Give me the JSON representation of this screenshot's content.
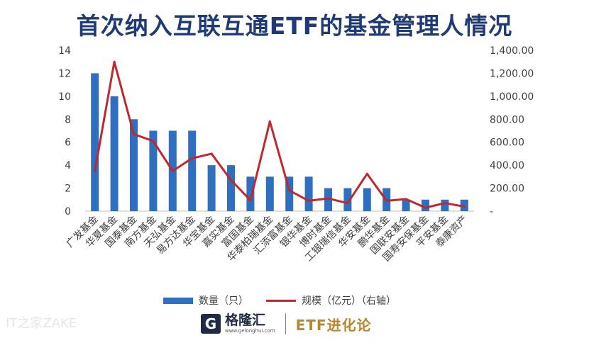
{
  "title": "首次纳入互联互通ETF的基金管理人情况",
  "chart_data": {
    "type": "bar+line",
    "categories": [
      "广发基金",
      "华夏基金",
      "国泰基金",
      "南方基金",
      "天弘基金",
      "易方达基金",
      "华宝基金",
      "嘉实基金",
      "富国基金",
      "华泰柏瑞基金",
      "汇添富基金",
      "银华基金",
      "博时基金",
      "工银瑞信基金",
      "华安基金",
      "鹏华基金",
      "国联安基金",
      "国寿安保基金",
      "平安基金",
      "泰康资产"
    ],
    "series": [
      {
        "name": "数量（只）",
        "type": "bar",
        "axis": "left",
        "color": "#2e6fc0",
        "values": [
          12,
          10,
          8,
          7,
          7,
          7,
          4,
          4,
          3,
          3,
          3,
          3,
          2,
          2,
          2,
          2,
          1,
          1,
          1,
          1
        ]
      },
      {
        "name": "规模（亿元）（右轴）",
        "type": "line",
        "axis": "right",
        "color": "#c0282d",
        "values": [
          350,
          1300,
          670,
          610,
          350,
          460,
          500,
          270,
          95,
          780,
          180,
          90,
          110,
          70,
          325,
          90,
          105,
          30,
          70,
          40
        ]
      }
    ],
    "left_axis": {
      "min": 0,
      "max": 14,
      "ticks": [
        "0",
        "2",
        "4",
        "6",
        "8",
        "10",
        "12",
        "14"
      ]
    },
    "right_axis": {
      "min": 0,
      "max": 1400,
      "ticks": [
        "-",
        "200.00",
        "400.00",
        "600.00",
        "800.00",
        "1,000.00",
        "1,200.00",
        "1,400.00"
      ]
    },
    "grid": false,
    "legend": "bottom"
  },
  "footer": {
    "logo_mark": "G",
    "logo_name": "格隆汇",
    "logo_url": "www.gelonghui.com",
    "brand": "ETF进化论",
    "watermark": "IT之家ZAKE"
  }
}
